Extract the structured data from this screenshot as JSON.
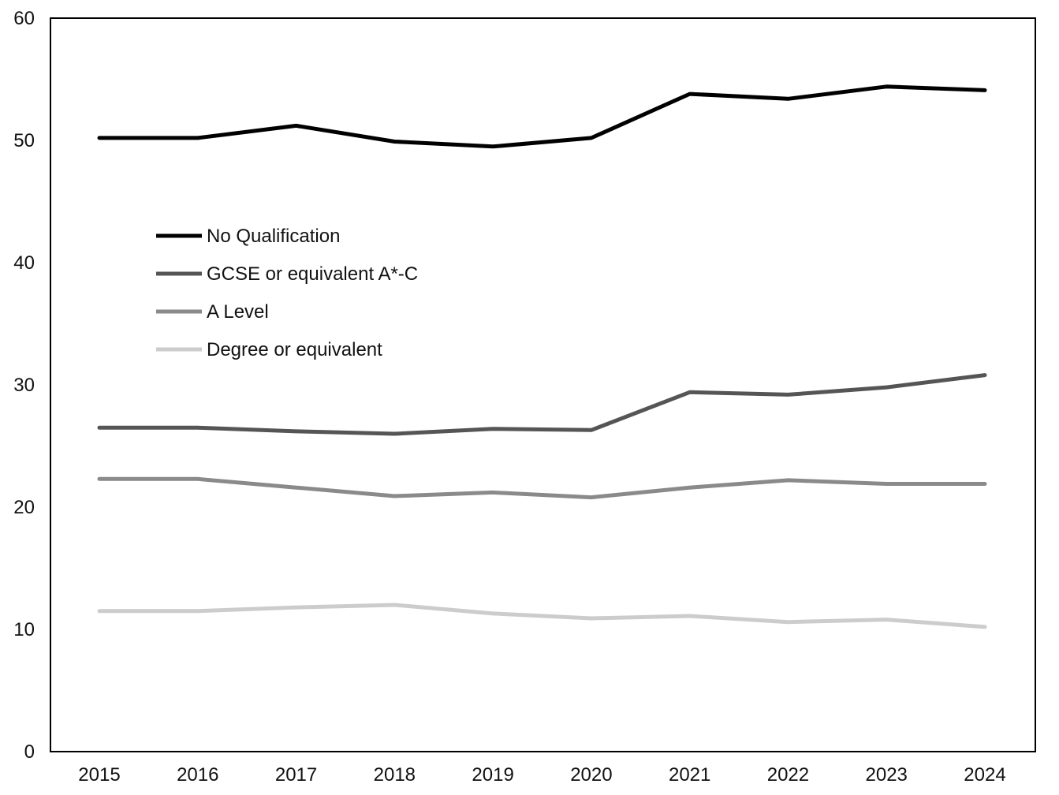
{
  "chart_data": {
    "type": "line",
    "title": "",
    "xlabel": "",
    "ylabel": "",
    "x": [
      "2015",
      "2016",
      "2017",
      "2018",
      "2019",
      "2020",
      "2021",
      "2022",
      "2023",
      "2024"
    ],
    "ylim": [
      0,
      60
    ],
    "yticks": [
      "0",
      "10",
      "20",
      "30",
      "40",
      "50",
      "60"
    ],
    "grid": false,
    "legend_position": "upper-left",
    "series": [
      {
        "name": "No Qualification",
        "color": "#000000",
        "values": [
          50.2,
          50.2,
          51.2,
          49.9,
          49.5,
          50.2,
          53.8,
          53.4,
          54.4,
          54.1
        ]
      },
      {
        "name": "GCSE or equivalent A*-C",
        "color": "#555555",
        "values": [
          26.5,
          26.5,
          26.2,
          26.0,
          26.4,
          26.3,
          29.4,
          29.2,
          29.8,
          30.8
        ]
      },
      {
        "name": "A Level",
        "color": "#8a8a8a",
        "values": [
          22.3,
          22.3,
          21.6,
          20.9,
          21.2,
          20.8,
          21.6,
          22.2,
          21.9,
          21.9
        ]
      },
      {
        "name": "Degree or equivalent",
        "color": "#cccccc",
        "values": [
          11.5,
          11.5,
          11.8,
          12.0,
          11.3,
          10.9,
          11.1,
          10.6,
          10.8,
          10.2
        ]
      }
    ]
  }
}
